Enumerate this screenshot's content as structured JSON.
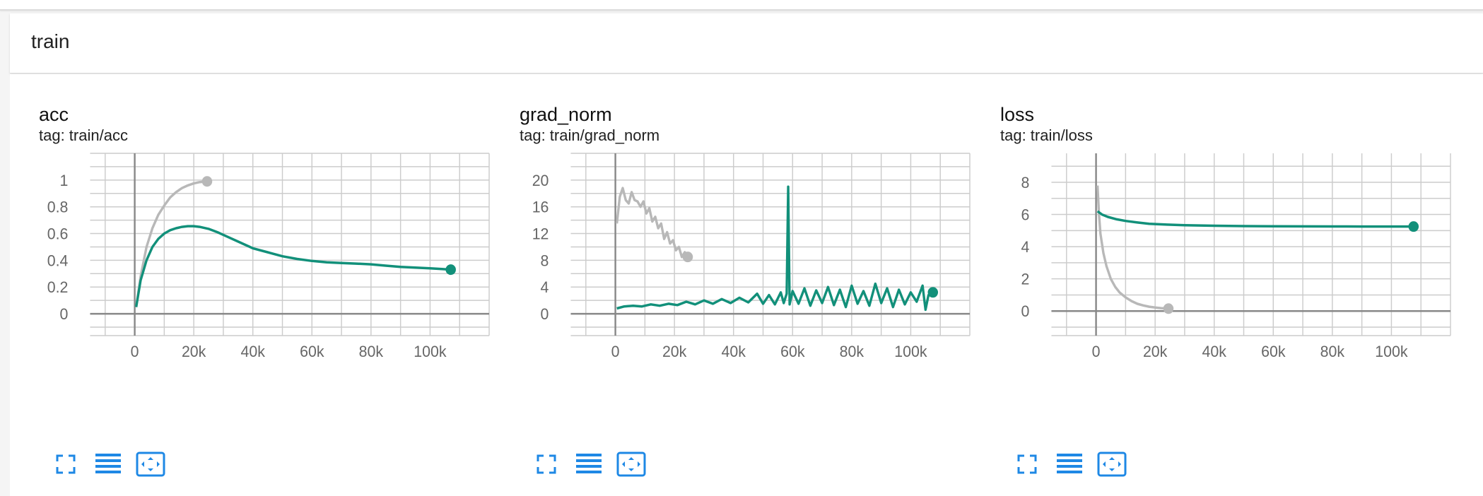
{
  "group": {
    "title": "train"
  },
  "colors": {
    "current_run": "#12907a",
    "previous_run": "#b8b8b8",
    "icon": "#1e88e5",
    "grid": "#cccccc",
    "axis": "#888888",
    "tick_text": "#666666"
  },
  "toolbar_icons": [
    "fullscreen-icon",
    "toggle-log-scale-icon",
    "fit-domain-icon"
  ],
  "chart_data": [
    {
      "type": "line",
      "title": "acc",
      "tag": "tag: train/acc",
      "xlim": [
        -10000,
        120000
      ],
      "ylim": [
        -0.1,
        1.2
      ],
      "x_ticks": [
        0,
        20000,
        40000,
        60000,
        80000,
        100000
      ],
      "x_tick_labels": [
        "0",
        "20k",
        "40k",
        "60k",
        "80k",
        "100k"
      ],
      "y_ticks": [
        0,
        0.2,
        0.4,
        0.6,
        0.8,
        1
      ],
      "y_tick_labels": [
        "0",
        "0.2",
        "0.4",
        "0.6",
        "0.8",
        "1"
      ],
      "grid": true,
      "series": [
        {
          "color": "previous_run",
          "x": [
            500,
            2000,
            4000,
            6000,
            8000,
            10000,
            12000,
            14000,
            16000,
            18000,
            20000,
            22000,
            24500
          ],
          "y": [
            0.05,
            0.28,
            0.5,
            0.64,
            0.74,
            0.81,
            0.87,
            0.91,
            0.94,
            0.96,
            0.975,
            0.985,
            0.99
          ]
        },
        {
          "color": "current_run",
          "x": [
            500,
            2000,
            4000,
            6000,
            8000,
            10000,
            12000,
            14000,
            16000,
            18000,
            20000,
            22000,
            25000,
            28000,
            31000,
            35000,
            40000,
            45000,
            50000,
            55000,
            60000,
            65000,
            70000,
            75000,
            80000,
            85000,
            90000,
            95000,
            100000,
            104000,
            107000
          ],
          "y": [
            0.05,
            0.25,
            0.4,
            0.5,
            0.56,
            0.6,
            0.625,
            0.64,
            0.65,
            0.655,
            0.655,
            0.65,
            0.635,
            0.61,
            0.58,
            0.54,
            0.49,
            0.46,
            0.43,
            0.41,
            0.395,
            0.385,
            0.38,
            0.375,
            0.37,
            0.36,
            0.35,
            0.345,
            0.34,
            0.335,
            0.33
          ]
        }
      ]
    },
    {
      "type": "line",
      "title": "grad_norm",
      "tag": "tag: train/grad_norm",
      "xlim": [
        -10000,
        120000
      ],
      "ylim": [
        -2,
        24
      ],
      "x_ticks": [
        0,
        20000,
        40000,
        60000,
        80000,
        100000
      ],
      "x_tick_labels": [
        "0",
        "20k",
        "40k",
        "60k",
        "80k",
        "100k"
      ],
      "y_ticks": [
        0,
        4,
        8,
        12,
        16,
        20
      ],
      "y_tick_labels": [
        "0",
        "4",
        "8",
        "12",
        "16",
        "20"
      ],
      "grid": true,
      "series": [
        {
          "color": "previous_run",
          "x": [
            500,
            1500,
            2500,
            3500,
            4500,
            5500,
            6500,
            7500,
            8500,
            9500,
            10500,
            11500,
            12500,
            13500,
            14500,
            15500,
            16500,
            17500,
            18500,
            19500,
            20500,
            21500,
            22500,
            23500,
            24500
          ],
          "y": [
            13.5,
            17.5,
            18.8,
            17.0,
            16.5,
            18.2,
            17.0,
            16.8,
            16.0,
            16.8,
            15.0,
            15.8,
            13.8,
            14.5,
            12.8,
            13.5,
            11.2,
            12.2,
            10.5,
            11.0,
            9.5,
            10.0,
            8.5,
            9.2,
            8.5
          ]
        },
        {
          "color": "current_run",
          "x": [
            500,
            3000,
            6000,
            9000,
            12000,
            15000,
            18000,
            21000,
            24000,
            27000,
            30000,
            33000,
            36000,
            39000,
            42000,
            45000,
            48000,
            50000,
            52000,
            54000,
            56000,
            57000,
            58000,
            58500,
            59000,
            60000,
            62000,
            64000,
            66000,
            68000,
            70000,
            72000,
            74000,
            76000,
            78000,
            80000,
            82000,
            84000,
            86000,
            88000,
            90000,
            92000,
            94000,
            96000,
            98000,
            100000,
            102000,
            104000,
            105000,
            106000,
            107500
          ],
          "y": [
            0.8,
            1.1,
            1.2,
            1.1,
            1.4,
            1.2,
            1.5,
            1.3,
            1.8,
            1.4,
            2.0,
            1.5,
            2.2,
            1.6,
            2.4,
            1.7,
            3.0,
            1.5,
            2.8,
            1.4,
            3.2,
            1.6,
            3.0,
            19.0,
            1.4,
            3.4,
            1.5,
            3.8,
            1.2,
            3.5,
            1.6,
            4.0,
            1.3,
            3.6,
            1.0,
            4.2,
            1.5,
            3.4,
            1.2,
            4.5,
            1.6,
            3.8,
            1.0,
            3.6,
            1.4,
            3.2,
            1.8,
            4.2,
            0.6,
            2.8,
            3.2
          ]
        }
      ]
    },
    {
      "type": "line",
      "title": "loss",
      "tag": "tag: train/loss",
      "xlim": [
        -10000,
        120000
      ],
      "ylim": [
        -1,
        9.8
      ],
      "x_ticks": [
        0,
        20000,
        40000,
        60000,
        80000,
        100000
      ],
      "x_tick_labels": [
        "0",
        "20k",
        "40k",
        "60k",
        "80k",
        "100k"
      ],
      "y_ticks": [
        0,
        2,
        4,
        6,
        8
      ],
      "y_tick_labels": [
        "0",
        "2",
        "4",
        "6",
        "8"
      ],
      "grid": true,
      "series": [
        {
          "color": "previous_run",
          "x": [
            500,
            1000,
            1500,
            2500,
            3500,
            5000,
            6500,
            8000,
            10000,
            12000,
            14000,
            16000,
            18000,
            20000,
            22000,
            24500
          ],
          "y": [
            7.8,
            6.0,
            4.8,
            3.6,
            2.8,
            2.0,
            1.5,
            1.15,
            0.85,
            0.62,
            0.45,
            0.35,
            0.27,
            0.22,
            0.18,
            0.15
          ]
        },
        {
          "color": "current_run",
          "x": [
            500,
            2000,
            4000,
            7000,
            10000,
            14000,
            18000,
            24000,
            30000,
            40000,
            50000,
            60000,
            70000,
            80000,
            90000,
            100000,
            107500
          ],
          "y": [
            6.2,
            6.0,
            5.85,
            5.7,
            5.6,
            5.5,
            5.42,
            5.37,
            5.33,
            5.3,
            5.28,
            5.27,
            5.26,
            5.255,
            5.25,
            5.25,
            5.25
          ]
        }
      ]
    }
  ]
}
